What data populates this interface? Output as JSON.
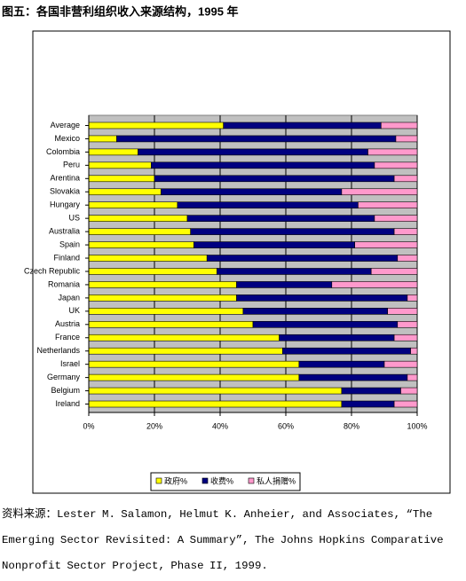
{
  "chart_data": {
    "type": "bar",
    "orientation": "horizontal",
    "stacked": true,
    "title": "图五：各国非营利组织收入来源结构，1995 年",
    "categories": [
      "Average",
      "Mexico",
      "Colombia",
      "Peru",
      "Arentina",
      "Slovakia",
      "Hungary",
      "US",
      "Australia",
      "Spain",
      "Finland",
      "Czech Republic",
      "Romania",
      "Japan",
      "UK",
      "Austria",
      "France",
      "Netherlands",
      "Israel",
      "Germany",
      "Belgium",
      "Ireland"
    ],
    "series": [
      {
        "name": "政府%",
        "color": "#ffff00",
        "values": [
          41,
          8.5,
          15,
          19,
          20,
          22,
          27,
          30,
          31,
          32,
          36,
          39,
          45,
          45,
          47,
          50,
          58,
          59,
          64,
          64,
          77,
          77
        ]
      },
      {
        "name": "收费%",
        "color": "#000080",
        "values": [
          48,
          85,
          70,
          68,
          73,
          55,
          55,
          57,
          62,
          49,
          58,
          47,
          29,
          52,
          44,
          44,
          35,
          39,
          26,
          33,
          18,
          16
        ]
      },
      {
        "name": "私人捐赠%",
        "color": "#ff99cc",
        "values": [
          11,
          6.5,
          15,
          13,
          7,
          23,
          18,
          13,
          7,
          19,
          6,
          14,
          26,
          3,
          9,
          6,
          7,
          2,
          10,
          3,
          5,
          7
        ]
      }
    ],
    "xlim": [
      0,
      100
    ],
    "xticks": [
      {
        "value": 0,
        "label": "0%"
      },
      {
        "value": 20,
        "label": "20%"
      },
      {
        "value": 40,
        "label": "40%"
      },
      {
        "value": 60,
        "label": "60%"
      },
      {
        "value": 80,
        "label": "80%"
      },
      {
        "value": 100,
        "label": "100%"
      }
    ],
    "grid": true,
    "legend": "bottom"
  },
  "source": "资料来源：Lester M. Salamon, Helmut K. Anheier, and Associates, “The Emerging Sector Revisited: A Summary”, The Johns Hopkins Comparative Nonprofit Sector Project, Phase II, 1999."
}
